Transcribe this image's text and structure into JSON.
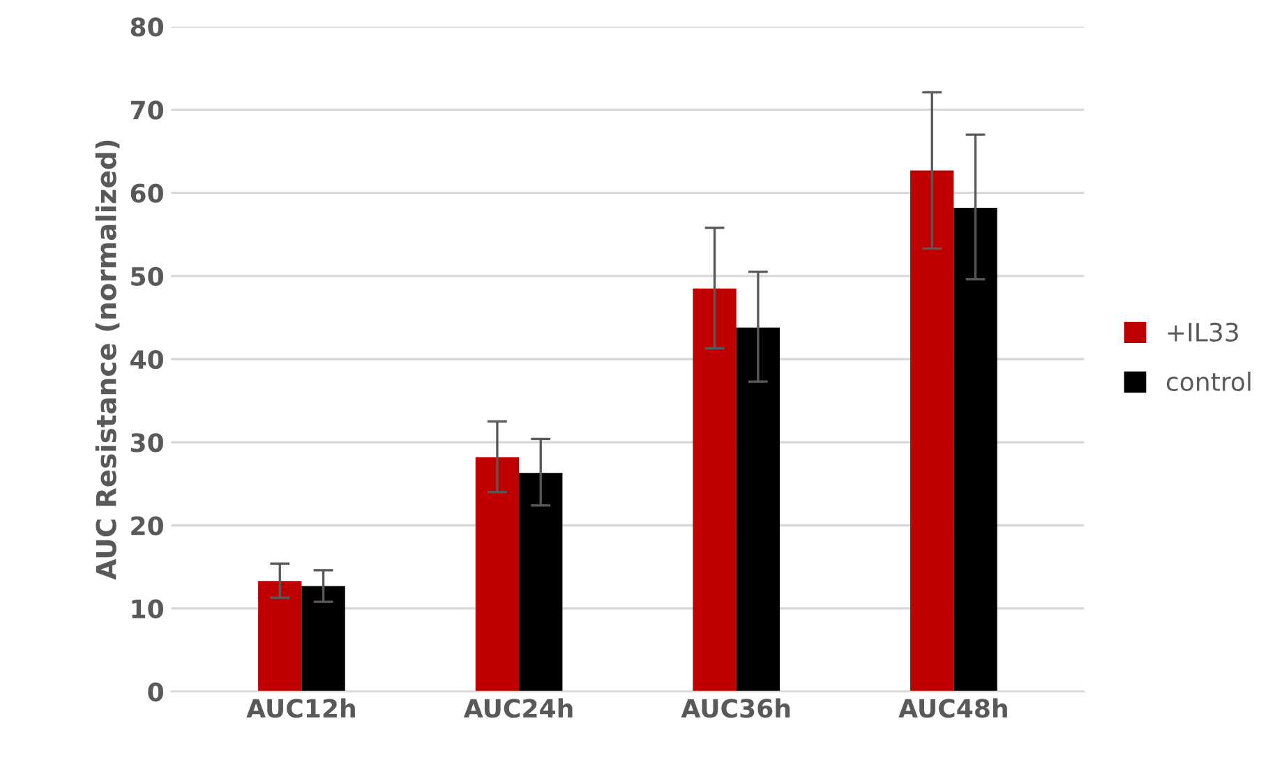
{
  "chart_data": {
    "type": "bar",
    "ylabel": "AUC Resistance (normalized)",
    "categories": [
      "AUC12h",
      "AUC24h",
      "AUC36h",
      "AUC48h"
    ],
    "series": [
      {
        "name": "+IL33",
        "color": "#c00000",
        "values": [
          13.3,
          28.2,
          48.5,
          62.7
        ],
        "errors": [
          [
            11.3,
            15.4
          ],
          [
            24.0,
            32.5
          ],
          [
            41.3,
            55.8
          ],
          [
            53.3,
            72.1
          ]
        ]
      },
      {
        "name": "control",
        "color": "#000000",
        "values": [
          12.7,
          26.3,
          43.8,
          58.2
        ],
        "errors": [
          [
            10.8,
            14.6
          ],
          [
            22.4,
            30.4
          ],
          [
            37.3,
            50.5
          ],
          [
            49.6,
            67.0
          ]
        ]
      }
    ],
    "ylim": [
      0,
      80
    ],
    "yticks": [
      0,
      10,
      20,
      30,
      40,
      50,
      60,
      70,
      80
    ],
    "grid": "y",
    "legend": "right"
  }
}
